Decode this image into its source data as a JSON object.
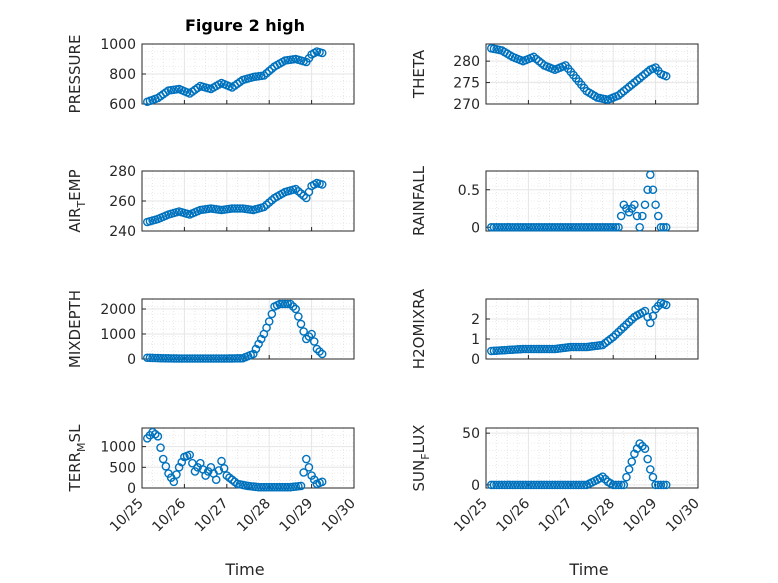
{
  "figure": {
    "title": "Figure 2 high",
    "xlabel": "Time"
  },
  "chart_data": [
    {
      "type": "scatter",
      "ylabel": "PRESSURE",
      "title": "Figure 2 high",
      "xlim": [
        "10/25",
        "10/30"
      ],
      "ylim": [
        600,
        1000
      ],
      "yticks": [
        "600",
        "800",
        "1000"
      ],
      "x": [
        "10/25 03:00",
        "10/25 09:00",
        "10/25 15:00",
        "10/25 21:00",
        "10/26 03:00",
        "10/26 09:00",
        "10/26 15:00",
        "10/26 21:00",
        "10/27 03:00",
        "10/27 09:00",
        "10/27 15:00",
        "10/27 21:00",
        "10/28 03:00",
        "10/28 09:00",
        "10/28 15:00",
        "10/28 21:00",
        "10/29 00:00",
        "10/29 03:00",
        "10/29 06:00"
      ],
      "y": [
        615,
        640,
        690,
        700,
        670,
        720,
        700,
        740,
        710,
        760,
        780,
        790,
        850,
        890,
        900,
        880,
        930,
        950,
        940
      ]
    },
    {
      "type": "scatter",
      "ylabel": "THETA",
      "xlim": [
        "10/25",
        "10/30"
      ],
      "ylim": [
        270,
        284
      ],
      "yticks": [
        "270",
        "275",
        "280"
      ],
      "x": [
        "10/25 03:00",
        "10/25 09:00",
        "10/25 15:00",
        "10/25 21:00",
        "10/26 03:00",
        "10/26 09:00",
        "10/26 15:00",
        "10/26 21:00",
        "10/27 03:00",
        "10/27 09:00",
        "10/27 15:00",
        "10/27 21:00",
        "10/28 03:00",
        "10/28 09:00",
        "10/28 15:00",
        "10/28 21:00",
        "10/29 00:00",
        "10/29 03:00",
        "10/29 06:00"
      ],
      "y": [
        283,
        282.5,
        281,
        280,
        281,
        279,
        278,
        279,
        276,
        273,
        271.5,
        271,
        272,
        274,
        276,
        278,
        278.5,
        277,
        276.5
      ]
    },
    {
      "type": "scatter",
      "ylabel": "AIR_TEMP",
      "xlim": [
        "10/25",
        "10/30"
      ],
      "ylim": [
        240,
        280
      ],
      "yticks": [
        "240",
        "260",
        "280"
      ],
      "x": [
        "10/25 03:00",
        "10/25 09:00",
        "10/25 15:00",
        "10/25 21:00",
        "10/26 03:00",
        "10/26 09:00",
        "10/26 15:00",
        "10/26 21:00",
        "10/27 03:00",
        "10/27 09:00",
        "10/27 15:00",
        "10/27 21:00",
        "10/28 03:00",
        "10/28 09:00",
        "10/28 15:00",
        "10/28 21:00",
        "10/29 00:00",
        "10/29 03:00",
        "10/29 06:00"
      ],
      "y": [
        246,
        248,
        251,
        253,
        251,
        254,
        255,
        254,
        255,
        255,
        254,
        256,
        262,
        266,
        268,
        262,
        270,
        272,
        271
      ]
    },
    {
      "type": "scatter",
      "ylabel": "RAINFALL",
      "xlim": [
        "10/25",
        "10/30"
      ],
      "ylim": [
        -0.05,
        0.75
      ],
      "yticks": [
        "0",
        "0.5"
      ],
      "x": [
        "10/25 03:00",
        "10/25 12:00",
        "10/25 21:00",
        "10/26 06:00",
        "10/26 15:00",
        "10/27 00:00",
        "10/27 09:00",
        "10/27 18:00",
        "10/28 03:00",
        "10/28 06:00",
        "10/28 09:00",
        "10/28 12:00",
        "10/28 15:00",
        "10/28 18:00",
        "10/28 21:00",
        "10/29 00:00",
        "10/29 03:00",
        "10/29 06:00"
      ],
      "y": [
        0,
        0,
        0,
        0,
        0,
        0,
        0,
        0,
        0,
        0.3,
        0.2,
        0.3,
        0,
        0.3,
        0.7,
        0.3,
        0,
        0
      ]
    },
    {
      "type": "scatter",
      "ylabel": "MIXDEPTH",
      "xlim": [
        "10/25",
        "10/30"
      ],
      "ylim": [
        0,
        2400
      ],
      "yticks": [
        "0",
        "1000",
        "2000"
      ],
      "x": [
        "10/25 03:00",
        "10/25 12:00",
        "10/25 21:00",
        "10/26 06:00",
        "10/26 15:00",
        "10/27 00:00",
        "10/27 09:00",
        "10/27 15:00",
        "10/27 18:00",
        "10/27 21:00",
        "10/28 00:00",
        "10/28 03:00",
        "10/28 06:00",
        "10/28 12:00",
        "10/28 15:00",
        "10/28 18:00",
        "10/28 21:00",
        "10/29 00:00",
        "10/29 03:00",
        "10/29 06:00"
      ],
      "y": [
        50,
        30,
        20,
        20,
        20,
        20,
        30,
        200,
        600,
        1000,
        1500,
        2100,
        2200,
        2200,
        2000,
        1400,
        800,
        1000,
        400,
        200
      ]
    },
    {
      "type": "scatter",
      "ylabel": "H2OMIXRA",
      "xlim": [
        "10/25",
        "10/30"
      ],
      "ylim": [
        0,
        3
      ],
      "yticks": [
        "0",
        "1",
        "2"
      ],
      "x": [
        "10/25 03:00",
        "10/25 12:00",
        "10/25 21:00",
        "10/26 06:00",
        "10/26 15:00",
        "10/27 00:00",
        "10/27 09:00",
        "10/27 18:00",
        "10/28 00:00",
        "10/28 06:00",
        "10/28 12:00",
        "10/28 18:00",
        "10/28 21:00",
        "10/29 00:00",
        "10/29 03:00",
        "10/29 06:00"
      ],
      "y": [
        0.4,
        0.45,
        0.5,
        0.5,
        0.5,
        0.6,
        0.6,
        0.7,
        1.1,
        1.6,
        2.1,
        2.4,
        1.8,
        2.5,
        2.8,
        2.7
      ]
    },
    {
      "type": "scatter",
      "ylabel": "TERR_MSL",
      "xlim": [
        "10/25",
        "10/30"
      ],
      "ylim": [
        0,
        1450
      ],
      "yticks": [
        "0",
        "500",
        "1000"
      ],
      "x": [
        "10/25 03:00",
        "10/25 06:00",
        "10/25 09:00",
        "10/25 12:00",
        "10/25 15:00",
        "10/25 18:00",
        "10/25 21:00",
        "10/26 00:00",
        "10/26 03:00",
        "10/26 06:00",
        "10/26 09:00",
        "10/26 12:00",
        "10/26 15:00",
        "10/26 18:00",
        "10/26 21:00",
        "10/27 00:00",
        "10/27 06:00",
        "10/27 12:00",
        "10/27 18:00",
        "10/28 00:00",
        "10/28 06:00",
        "10/28 12:00",
        "10/28 18:00",
        "10/28 21:00",
        "10/29 00:00",
        "10/29 03:00",
        "10/29 06:00"
      ],
      "y": [
        1200,
        1350,
        1250,
        700,
        350,
        150,
        500,
        750,
        800,
        400,
        600,
        300,
        500,
        200,
        650,
        300,
        100,
        50,
        20,
        20,
        20,
        20,
        50,
        700,
        300,
        100,
        150
      ]
    },
    {
      "type": "scatter",
      "ylabel": "SUN_FLUX",
      "xlim": [
        "10/25",
        "10/30"
      ],
      "ylim": [
        -3,
        55
      ],
      "yticks": [
        "0",
        "50"
      ],
      "x": [
        "10/25 03:00",
        "10/25 12:00",
        "10/25 21:00",
        "10/26 06:00",
        "10/26 15:00",
        "10/27 00:00",
        "10/27 09:00",
        "10/27 15:00",
        "10/27 18:00",
        "10/27 21:00",
        "10/28 00:00",
        "10/28 06:00",
        "10/28 09:00",
        "10/28 12:00",
        "10/28 15:00",
        "10/28 18:00",
        "10/28 21:00",
        "10/29 00:00",
        "10/29 03:00",
        "10/29 06:00"
      ],
      "y": [
        0,
        0,
        0,
        0,
        0,
        0,
        0,
        5,
        8,
        3,
        0,
        0,
        15,
        30,
        40,
        35,
        15,
        0,
        0,
        0
      ]
    }
  ],
  "xticks": [
    "10/25",
    "10/26",
    "10/27",
    "10/28",
    "10/29",
    "10/30"
  ],
  "colors": {
    "marker": "#0072BD",
    "grid": "#e6e6e6",
    "axis": "#262626"
  }
}
